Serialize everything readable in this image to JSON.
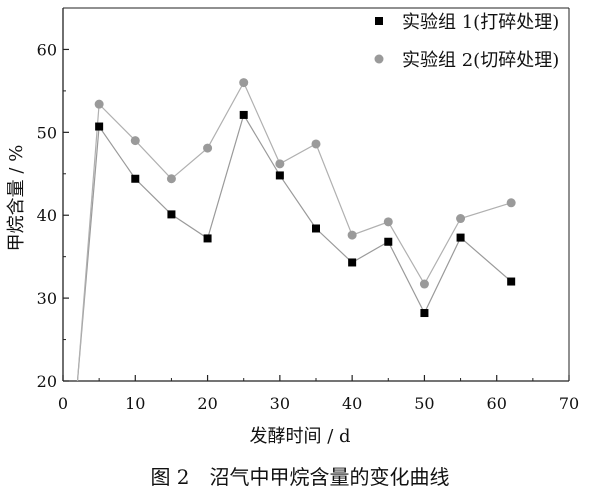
{
  "chart_data": {
    "type": "line",
    "xlabel": "发酵时间 / d",
    "ylabel": "甲烷含量 / %",
    "caption": "图 2　沼气中甲烷含量的变化曲线",
    "xlim": [
      0,
      70
    ],
    "ylim": [
      20,
      65
    ],
    "xticks": [
      "0",
      "10",
      "20",
      "30",
      "40",
      "50",
      "60",
      "70"
    ],
    "yticks": [
      "20",
      "30",
      "40",
      "50",
      "60"
    ],
    "xtick_values": [
      0,
      10,
      20,
      30,
      40,
      50,
      60,
      70
    ],
    "ytick_values": [
      20,
      30,
      40,
      50,
      60
    ],
    "grid": false,
    "legend_position": "top-right",
    "series": [
      {
        "name": "实验组 1(打碎处理)",
        "marker": "square",
        "color": "#000000",
        "line_color": "#9a9a9a",
        "x": [
          2,
          5,
          10,
          15,
          20,
          25,
          30,
          35,
          40,
          45,
          50,
          55,
          62
        ],
        "y": [
          20,
          50.7,
          44.4,
          40.1,
          37.2,
          52.1,
          44.8,
          38.4,
          34.3,
          36.8,
          28.2,
          37.3,
          32.0
        ]
      },
      {
        "name": "实验组 2(切碎处理)",
        "marker": "circle",
        "color": "#9a9a9a",
        "line_color": "#b0b0b0",
        "x": [
          2,
          5,
          10,
          15,
          20,
          25,
          30,
          35,
          40,
          45,
          50,
          55,
          62
        ],
        "y": [
          20,
          53.4,
          49.0,
          44.4,
          48.1,
          56.0,
          46.2,
          48.6,
          37.6,
          39.2,
          31.7,
          39.6,
          41.5
        ]
      }
    ]
  }
}
